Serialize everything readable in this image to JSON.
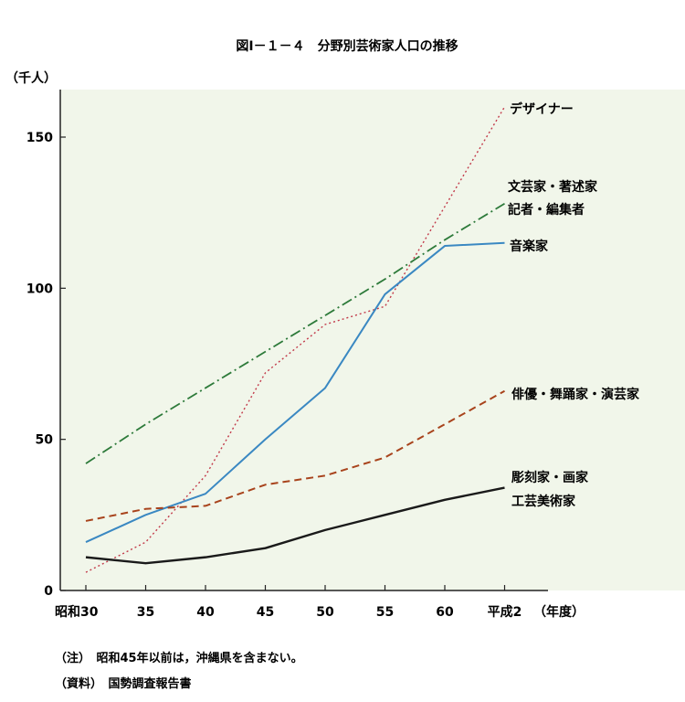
{
  "chart_data": {
    "type": "line",
    "title": "図Ⅰ－１－４　分野別芸術家人口の推移",
    "ylabel": "（千人）",
    "xlabel": "（年度）",
    "categories": [
      "昭和30",
      "35",
      "40",
      "45",
      "50",
      "55",
      "60",
      "平成2"
    ],
    "ylim": [
      0,
      160
    ],
    "yticks": [
      0,
      50,
      100,
      150
    ],
    "grid": false,
    "series": [
      {
        "name": "デザイナー",
        "values": [
          6,
          16,
          38,
          72,
          88,
          94,
          127,
          160
        ],
        "color": "#c23a4a",
        "style": "dotted"
      },
      {
        "name": "文芸家・著述家 記者・編集者",
        "label_lines": [
          "文芸家・著述家",
          "記者・編集者"
        ],
        "values": [
          42,
          55,
          67,
          79,
          91,
          103,
          116,
          128
        ],
        "color": "#2d7a3a",
        "style": "dashdot"
      },
      {
        "name": "音楽家",
        "values": [
          16,
          25,
          32,
          50,
          67,
          98,
          114,
          115
        ],
        "color": "#3a88c2",
        "style": "solid"
      },
      {
        "name": "俳優・舞踊家・演芸家",
        "label_lines": [
          "俳優・舞踊家・演芸家"
        ],
        "values": [
          23,
          27,
          28,
          35,
          38,
          44,
          55,
          66
        ],
        "color": "#a8431c",
        "style": "dashed"
      },
      {
        "name": "彫刻家・画家 工芸美術家",
        "label_lines": [
          "彫刻家・画家",
          "工芸美術家"
        ],
        "values": [
          11,
          9,
          11,
          14,
          20,
          25,
          30,
          34
        ],
        "color": "#1a1a1a",
        "style": "solid"
      }
    ]
  },
  "notes": {
    "note1": "（注）　昭和45年以前は，沖縄県を含まない。",
    "note2": "（資料）　国勢調査報告書"
  }
}
